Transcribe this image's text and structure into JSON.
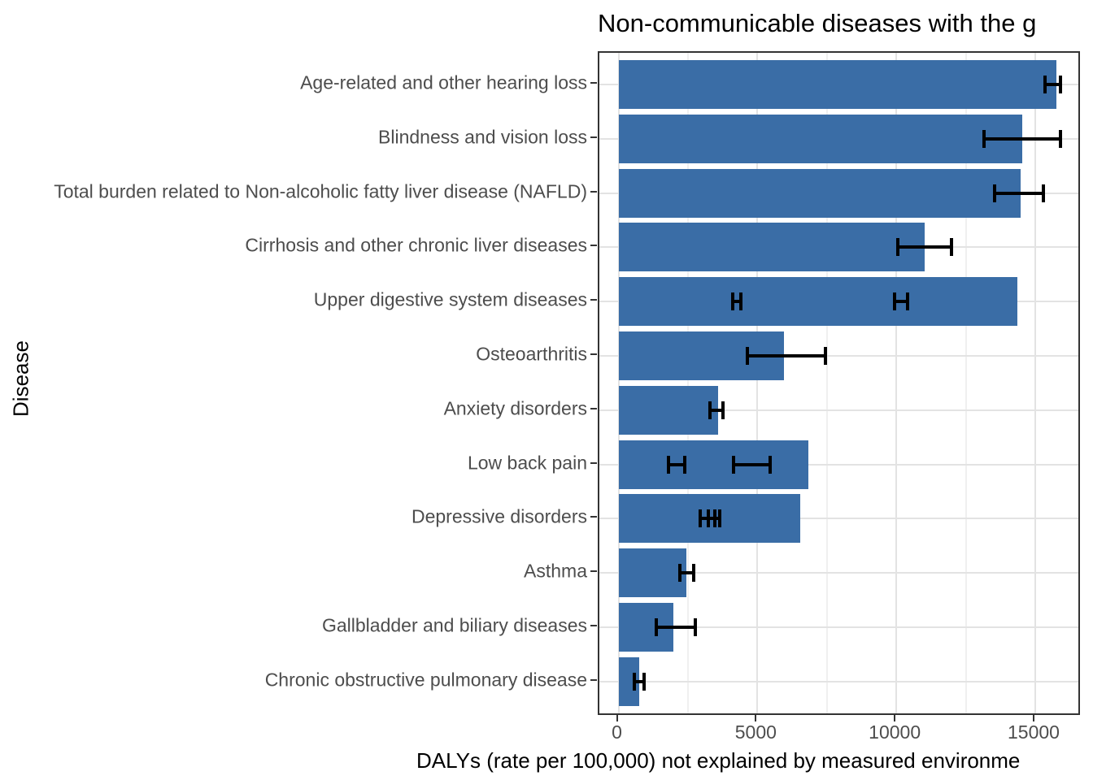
{
  "title": "Non-communicable diseases with the g",
  "chart_data": {
    "type": "bar",
    "orientation": "horizontal",
    "title": "Non-communicable diseases with the g",
    "title_note": "clipped at right edge of image",
    "xlabel": "DALYs (rate per 100,000) not explained by measured environme",
    "xlabel_note": "clipped at right edge of image",
    "ylabel": "Disease",
    "bar_color": "#3A6DA6",
    "error_bar_color": "#000000",
    "x_ticks": [
      0,
      5000,
      10000,
      15000
    ],
    "x_minor_gridlines": [
      2500,
      7500,
      12500
    ],
    "xlim": [
      -690,
      16680
    ],
    "grid": "major and minor vertical, major horizontal per category",
    "legend_position": "none",
    "rows": [
      {
        "label": "Age-related and other hearing loss",
        "value": 15750,
        "errors": [
          [
            15350,
            15900
          ]
        ]
      },
      {
        "label": "Blindness and vision loss",
        "value": 14530,
        "errors": [
          [
            13150,
            15900
          ]
        ]
      },
      {
        "label": "Total burden related to Non-alcoholic fatty liver disease (NAFLD)",
        "value": 14480,
        "errors": [
          [
            13540,
            15300
          ]
        ]
      },
      {
        "label": "Cirrhosis and other chronic liver diseases",
        "value": 11020,
        "errors": [
          [
            10060,
            11990
          ]
        ]
      },
      {
        "label": "Upper digestive system diseases",
        "value": 14360,
        "errors": [
          [
            4110,
            4400
          ],
          [
            9930,
            10400
          ]
        ]
      },
      {
        "label": "Osteoarthritis",
        "value": 5960,
        "errors": [
          [
            4640,
            7450
          ]
        ]
      },
      {
        "label": "Anxiety disorders",
        "value": 3590,
        "errors": [
          [
            3290,
            3760
          ]
        ]
      },
      {
        "label": "Low back pain",
        "value": 6840,
        "errors": [
          [
            1800,
            2390
          ],
          [
            4140,
            5460
          ]
        ]
      },
      {
        "label": "Depressive disorders",
        "value": 6540,
        "errors": [
          [
            2940,
            3470
          ],
          [
            3240,
            3650
          ]
        ]
      },
      {
        "label": "Asthma",
        "value": 2440,
        "errors": [
          [
            2210,
            2710
          ]
        ]
      },
      {
        "label": "Gallbladder and biliary diseases",
        "value": 1980,
        "errors": [
          [
            1360,
            2780
          ]
        ]
      },
      {
        "label": "Chronic obstructive pulmonary disease",
        "value": 760,
        "errors": [
          [
            580,
            920
          ]
        ]
      }
    ]
  }
}
